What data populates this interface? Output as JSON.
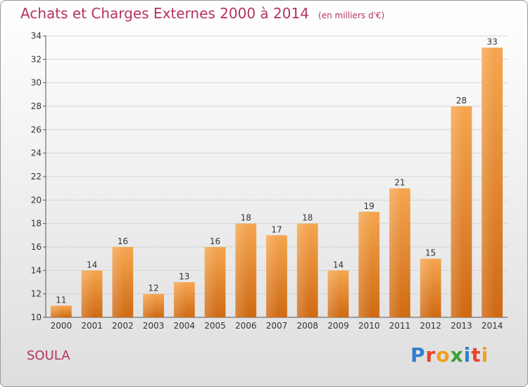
{
  "title": "Achats et Charges Externes 2000 à 2014",
  "unit_note": "(en milliers d'€)",
  "commune": "SOULA",
  "logo_text": "Proxiti",
  "colors": {
    "title": "#b3345c",
    "bar_top": "#f5a650",
    "bar_bottom": "#cf6a14",
    "logo_letters": [
      "#2f7fd0",
      "#e8432c",
      "#f0a020",
      "#3aa03a",
      "#2f7fd0",
      "#e8432c",
      "#f0a020"
    ]
  },
  "chart_data": {
    "type": "bar",
    "categories": [
      "2000",
      "2001",
      "2002",
      "2003",
      "2004",
      "2005",
      "2006",
      "2007",
      "2008",
      "2009",
      "2010",
      "2011",
      "2012",
      "2013",
      "2014"
    ],
    "values": [
      11,
      14,
      16,
      12,
      13,
      16,
      18,
      17,
      18,
      14,
      19,
      21,
      15,
      28,
      33
    ],
    "ylim": [
      10,
      34
    ],
    "yticks": [
      10,
      12,
      14,
      16,
      18,
      20,
      22,
      24,
      26,
      28,
      30,
      32,
      34
    ],
    "grid": true,
    "legend": "none"
  }
}
